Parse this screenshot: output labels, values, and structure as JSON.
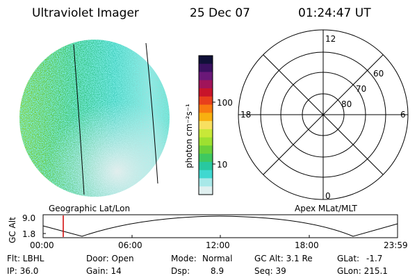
{
  "header": {
    "title": "Ultraviolet Imager",
    "date": "25 Dec 07",
    "time": "01:24:47 UT"
  },
  "image_panel": {
    "caption": "Geographic Lat/Lon"
  },
  "colorbar": {
    "unit": "photon cm⁻²s⁻¹",
    "ticks": [
      "100",
      "10"
    ],
    "colors": [
      "#101038",
      "#3a1060",
      "#6a1878",
      "#a0145a",
      "#c8142a",
      "#e8401c",
      "#f87a10",
      "#f8b010",
      "#f8e060",
      "#c8e838",
      "#9ee030",
      "#6ad03a",
      "#3ec860",
      "#28c8a0",
      "#40d8d0",
      "#a8e8e8",
      "#e0f0f0"
    ]
  },
  "polar_plot": {
    "caption": "Apex MLat/MLT",
    "mlt_labels": {
      "top": "12",
      "bottom": "0",
      "left": "18",
      "right": "6"
    },
    "lat_labels": [
      "60",
      "70",
      "80"
    ]
  },
  "altitude_plot": {
    "ylabel": "GC Alt",
    "yticks": [
      "9.0",
      "1.8"
    ],
    "xticks": [
      "00:00",
      "06:00",
      "12:00",
      "18:00",
      "23:59"
    ],
    "marker_color": "#d00000",
    "marker_time": "01:24:47"
  },
  "info": {
    "row1": {
      "flt": "Flt: LBHL",
      "door": "Door: Open",
      "mode_label": "Mode:",
      "mode_value": "Normal",
      "gcalt": "GC Alt: 3.1 Re",
      "glat_label": "GLat:",
      "glat_value": "-1.7"
    },
    "row2": {
      "ip": "IP: 36.0",
      "gain": "Gain: 14",
      "dsp_label": "Dsp:",
      "dsp_value": "8.9",
      "seq": "Seq: 39",
      "glon": "GLon: 215.1"
    }
  }
}
